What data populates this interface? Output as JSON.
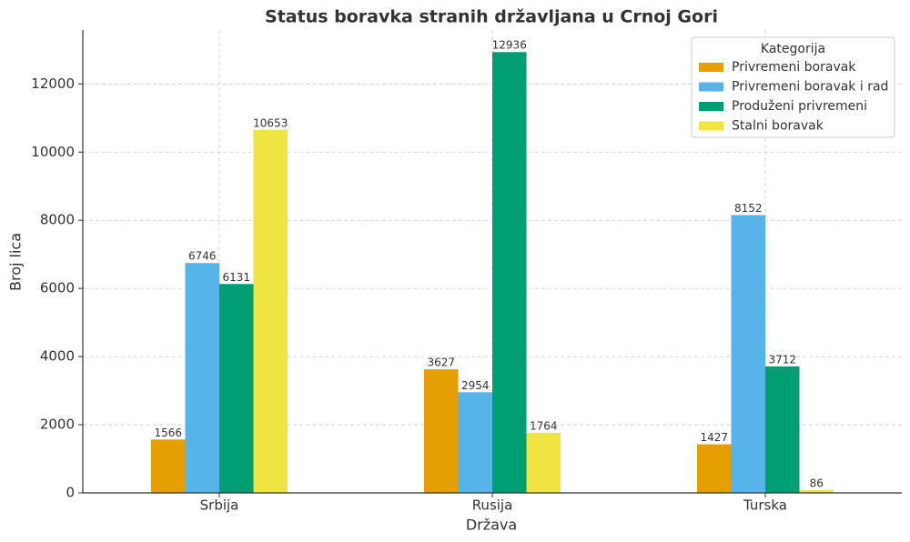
{
  "chart_data": {
    "type": "bar",
    "title": "Status boravka stranih državljana u Crnoj Gori",
    "x_label": "Država",
    "y_label": "Broj lica",
    "categories": [
      "Srbija",
      "Rusija",
      "Turska"
    ],
    "legend_title": "Kategorija",
    "legend_position": "upper right",
    "grid": true,
    "series": [
      {
        "name": "Privremeni boravak",
        "color": "#E69F00",
        "values": [
          1566,
          3627,
          1427
        ]
      },
      {
        "name": "Privremeni boravak i rad",
        "color": "#56B4E9",
        "values": [
          6746,
          2954,
          8152
        ]
      },
      {
        "name": "Produženi privremeni",
        "color": "#009E73",
        "values": [
          6131,
          12936,
          3712
        ]
      },
      {
        "name": "Stalni boravak",
        "color": "#F0E442",
        "values": [
          10653,
          1764,
          86
        ]
      }
    ],
    "ylim": [
      0,
      13583
    ],
    "yticks": [
      0,
      2000,
      4000,
      6000,
      8000,
      10000,
      12000
    ]
  }
}
